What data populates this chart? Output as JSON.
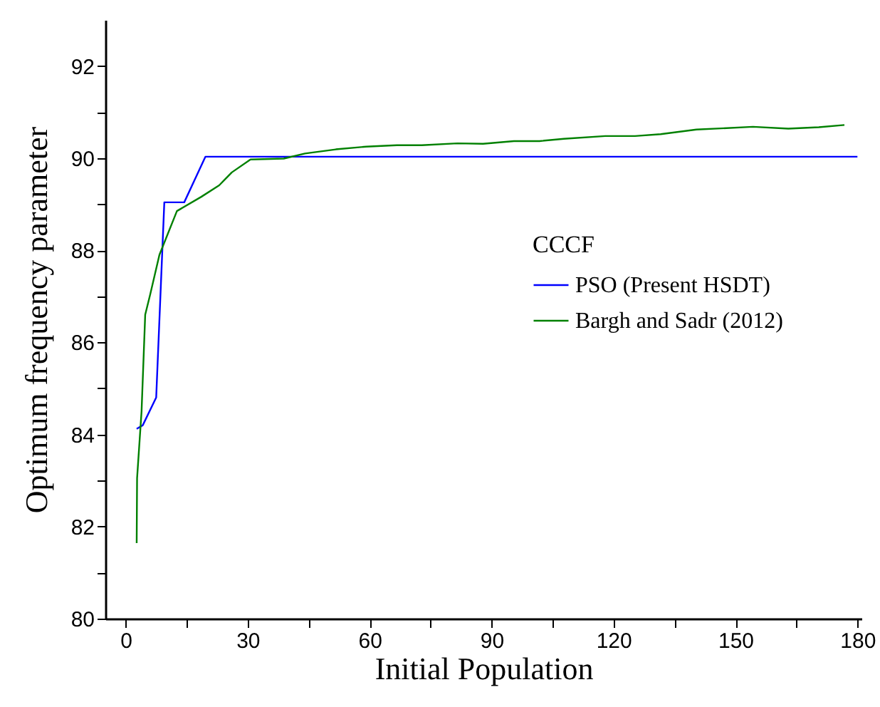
{
  "chart_data": {
    "type": "line",
    "xlabel": "Initial Population",
    "ylabel": "Optimum frequency parameter",
    "legend_title": "CCCF",
    "legend": "right",
    "grid": false,
    "xlim": [
      -5,
      181
    ],
    "xticks": [
      0,
      {
        "value": 15,
        "label": null
      },
      30,
      {
        "value": 45,
        "label": null
      },
      60,
      {
        "value": 75,
        "label": null
      },
      90,
      {
        "value": 105,
        "label": null
      },
      120,
      {
        "value": 135,
        "label": null
      },
      150,
      {
        "value": 165,
        "label": null
      },
      180
    ],
    "ylim": [
      80,
      93
    ],
    "yticks": [
      80,
      {
        "value": 81,
        "label": null
      },
      82,
      {
        "value": 83,
        "label": null
      },
      84,
      {
        "value": 85,
        "label": null
      },
      86,
      {
        "value": 87,
        "label": null
      },
      88,
      {
        "value": 89,
        "label": null
      },
      90,
      {
        "value": 91,
        "label": null
      },
      92
    ],
    "series": [
      {
        "name": "PSO (Present HSDT)",
        "color": "#0000ff",
        "x": [
          2.7,
          4.2,
          7.5,
          9.5,
          14.4,
          19.6,
          180
        ],
        "values": [
          84.12,
          84.2,
          84.8,
          89.04,
          89.04,
          90.03,
          90.03
        ]
      },
      {
        "name": "Bargh and Sadr (2012)",
        "color": "#008000",
        "x": [
          2.7,
          2.8,
          3.9,
          4.8,
          6,
          8.3,
          12.6,
          18.6,
          23,
          26.1,
          30.7,
          38.9,
          44.1,
          51.7,
          59.2,
          66.7,
          72.8,
          81.6,
          87.9,
          95.5,
          101.8,
          107.8,
          118,
          125.3,
          131.6,
          140.4,
          154.3,
          163,
          170.5,
          176.8
        ],
        "values": [
          81.64,
          83.05,
          84.5,
          86.6,
          87.03,
          87.9,
          88.85,
          89.16,
          89.41,
          89.69,
          89.97,
          89.99,
          90.1,
          90.19,
          90.25,
          90.28,
          90.28,
          90.32,
          90.31,
          90.37,
          90.37,
          90.42,
          90.48,
          90.48,
          90.52,
          90.62,
          90.68,
          90.64,
          90.67,
          90.72
        ]
      }
    ]
  }
}
